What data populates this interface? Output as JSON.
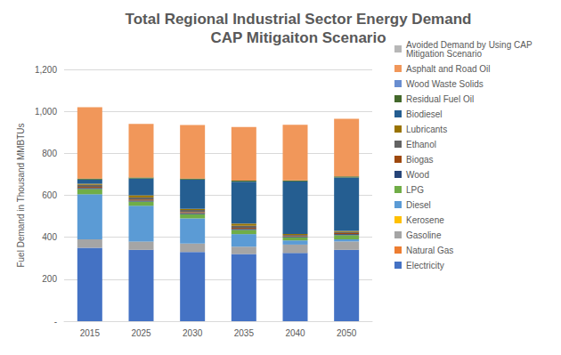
{
  "chart_data": {
    "type": "bar",
    "title": "Total Regional Industrial Sector Energy Demand",
    "subtitle": "CAP Mitigaiton Scenario",
    "y_label": "Fuel Demand in Thousand MMBTUs",
    "categories": [
      "2015",
      "2025",
      "2030",
      "2035",
      "2040",
      "2050"
    ],
    "stacked": true,
    "grid": true,
    "legend": "right",
    "ylim": [
      0,
      1200
    ],
    "yticks": [
      {
        "value": 0,
        "label": "-"
      },
      200,
      400,
      600,
      800,
      {
        "value": 1000,
        "label": "1,000"
      },
      {
        "value": 1200,
        "label": "1,200"
      }
    ],
    "series": [
      {
        "name": "Electricity",
        "color": "#4472C4",
        "values": [
          350,
          340,
          330,
          320,
          325,
          340
        ]
      },
      {
        "name": "Natural Gas",
        "color": "#ED7D31",
        "values": [
          0,
          0,
          0,
          0,
          0,
          0
        ]
      },
      {
        "name": "Gasoline",
        "color": "#A5A5A5",
        "values": [
          40,
          40,
          40,
          35,
          40,
          40
        ]
      },
      {
        "name": "Kerosene",
        "color": "#FFC000",
        "values": [
          0,
          0,
          0,
          0,
          0,
          0
        ]
      },
      {
        "name": "Diesel",
        "color": "#5B9BD5",
        "values": [
          215,
          170,
          120,
          60,
          20,
          10
        ]
      },
      {
        "name": "LPG",
        "color": "#70AD47",
        "values": [
          25,
          20,
          20,
          20,
          15,
          20
        ]
      },
      {
        "name": "Wood",
        "color": "#264478",
        "values": [
          5,
          5,
          5,
          5,
          3,
          5
        ]
      },
      {
        "name": "Biogas",
        "color": "#9E480E",
        "values": [
          5,
          5,
          5,
          5,
          3,
          5
        ]
      },
      {
        "name": "Ethanol",
        "color": "#636363",
        "values": [
          10,
          10,
          10,
          10,
          5,
          5
        ]
      },
      {
        "name": "Lubricants",
        "color": "#997300",
        "values": [
          5,
          10,
          5,
          10,
          5,
          5
        ]
      },
      {
        "name": "Biodiesel",
        "color": "#255E91",
        "values": [
          20,
          80,
          140,
          200,
          250,
          255
        ]
      },
      {
        "name": "Residual Fuel Oil",
        "color": "#43682B",
        "values": [
          5,
          5,
          5,
          5,
          5,
          5
        ]
      },
      {
        "name": "Wood Waste Solids",
        "color": "#698ED0",
        "values": [
          0,
          0,
          0,
          0,
          0,
          0
        ]
      },
      {
        "name": "Asphalt and Road Oil",
        "color": "#F1975A",
        "values": [
          340,
          255,
          255,
          255,
          265,
          275
        ]
      },
      {
        "name": "Avoided Demand by Using CAP Mitigation Scenario",
        "color": "#B7B7B7",
        "values": [
          0,
          0,
          0,
          0,
          0,
          0
        ]
      }
    ]
  }
}
